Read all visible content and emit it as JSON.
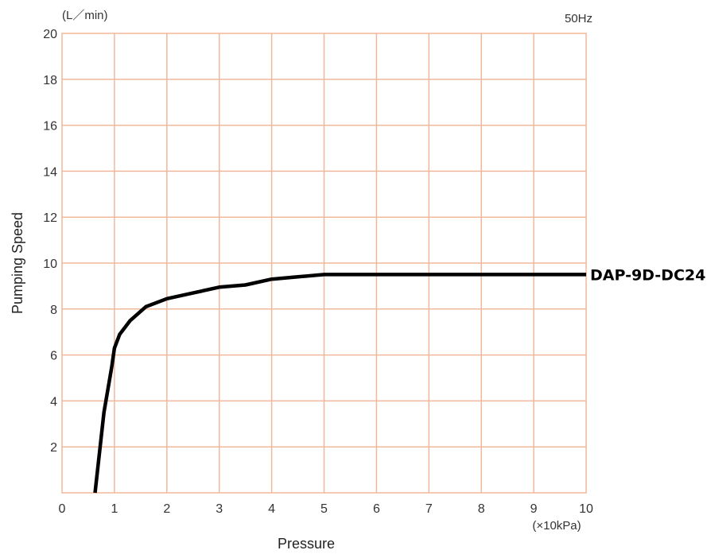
{
  "chart_data": {
    "type": "line",
    "title": "",
    "frequency_note": "50Hz",
    "xlabel": "Pressure",
    "x_unit": "(×10kPa)",
    "ylabel": "Pumping Speed",
    "y_unit": "(L／min)",
    "xlim": [
      0,
      10
    ],
    "ylim": [
      0,
      20
    ],
    "x_ticks": [
      0,
      1,
      2,
      3,
      4,
      5,
      6,
      7,
      8,
      9,
      10
    ],
    "y_ticks": [
      2,
      4,
      6,
      8,
      10,
      12,
      14,
      16,
      18,
      20
    ],
    "grid": true,
    "grid_color": "#f0b89a",
    "line_color": "#000000",
    "series": [
      {
        "name": "DAP-9D-DC24",
        "x": [
          0.63,
          0.8,
          0.95,
          1.0,
          1.1,
          1.3,
          1.6,
          2.0,
          2.5,
          3.0,
          3.5,
          4.0,
          4.5,
          5.0,
          5.2,
          6.0,
          7.0,
          8.0,
          9.0,
          10.0
        ],
        "y": [
          0.0,
          3.5,
          5.5,
          6.3,
          6.9,
          7.5,
          8.1,
          8.45,
          8.7,
          8.95,
          9.05,
          9.3,
          9.4,
          9.5,
          9.5,
          9.5,
          9.5,
          9.5,
          9.5,
          9.5
        ]
      }
    ]
  }
}
